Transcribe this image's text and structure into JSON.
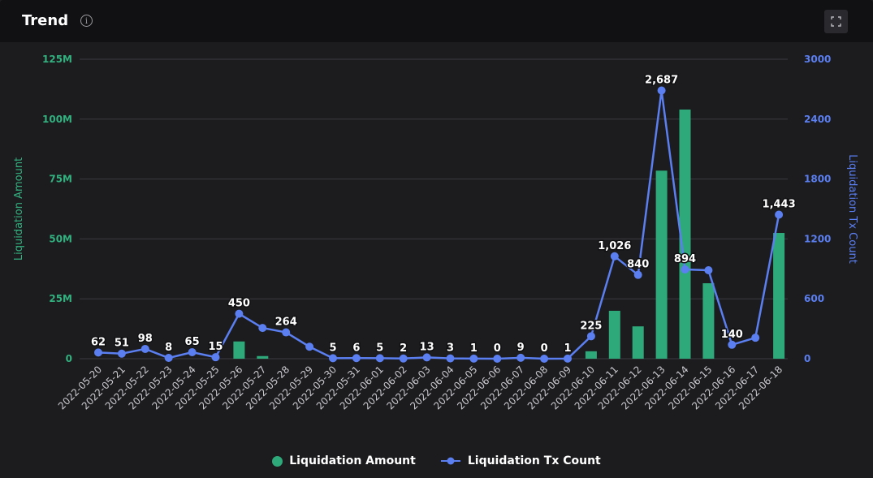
{
  "header": {
    "title": "Trend",
    "info_icon": "info-icon",
    "fullscreen_icon": "expand-icon"
  },
  "colors": {
    "bar": "#2ea97a",
    "line": "#5b7ff0",
    "left_axis": "#33b07f",
    "right_axis": "#5b7ff0",
    "grid": "#3a3a40"
  },
  "legend": {
    "bar_label": "Liquidation Amount",
    "line_label": "Liquidation Tx Count"
  },
  "chart_data": {
    "type": "bar",
    "categories": [
      "2022-05-20",
      "2022-05-21",
      "2022-05-22",
      "2022-05-23",
      "2022-05-24",
      "2022-05-25",
      "2022-05-26",
      "2022-05-27",
      "2022-05-28",
      "2022-05-29",
      "2022-05-30",
      "2022-05-31",
      "2022-06-01",
      "2022-06-02",
      "2022-06-03",
      "2022-06-04",
      "2022-06-05",
      "2022-06-06",
      "2022-06-07",
      "2022-06-08",
      "2022-06-09",
      "2022-06-10",
      "2022-06-11",
      "2022-06-12",
      "2022-06-13",
      "2022-06-14",
      "2022-06-15",
      "2022-06-16",
      "2022-06-17",
      "2022-06-18"
    ],
    "series": [
      {
        "name": "Liquidation Amount",
        "type": "bar",
        "axis": "left",
        "values": [
          0,
          0,
          0,
          0,
          0,
          0,
          7200000,
          1100000,
          0,
          0,
          0,
          0,
          0,
          0,
          0,
          0,
          0,
          0,
          0,
          0,
          0,
          3100000,
          20000000,
          13500000,
          78500000,
          104000000,
          31500000,
          0,
          0,
          52500000
        ]
      },
      {
        "name": "Liquidation Tx Count",
        "type": "line",
        "axis": "right",
        "values": [
          62,
          51,
          98,
          8,
          65,
          15,
          450,
          308,
          264,
          120,
          5,
          6,
          5,
          2,
          13,
          3,
          1,
          0,
          9,
          0,
          1,
          225,
          1026,
          840,
          2687,
          894,
          886,
          140,
          210,
          1443
        ]
      }
    ],
    "data_labels": [
      "62",
      "51",
      "98",
      "8",
      "65",
      "15",
      "450",
      "",
      "264",
      "",
      "5",
      "6",
      "5",
      "2",
      "13",
      "3",
      "1",
      "0",
      "9",
      "0",
      "1",
      "225",
      "1,026",
      "840",
      "2,687",
      "894",
      "",
      "140",
      "",
      "1,443"
    ],
    "y_left": {
      "label": "Liquidation Amount",
      "ticks": [
        "0",
        "25M",
        "50M",
        "75M",
        "100M",
        "125M"
      ],
      "range": [
        0,
        125000000
      ]
    },
    "y_right": {
      "label": "Liquidation Tx Count",
      "ticks": [
        "0",
        "600",
        "1200",
        "1800",
        "2400",
        "3000"
      ],
      "range": [
        0,
        3000
      ]
    },
    "grid": true,
    "legend_position": "bottom-center"
  }
}
